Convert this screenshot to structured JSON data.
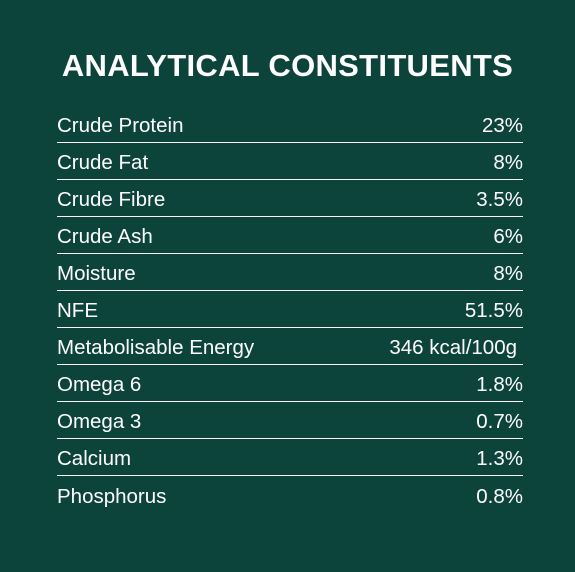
{
  "title": "ANALYTICAL CONSTITUENTS",
  "rows": [
    {
      "label": "Crude Protein",
      "value": "23%"
    },
    {
      "label": "Crude Fat",
      "value": "8%"
    },
    {
      "label": "Crude Fibre",
      "value": "3.5%"
    },
    {
      "label": "Crude Ash",
      "value": "6%"
    },
    {
      "label": "Moisture",
      "value": "8%"
    },
    {
      "label": "NFE",
      "value": "51.5%"
    },
    {
      "label": "Metabolisable Energy",
      "value": "346 kcal/100g"
    },
    {
      "label": "Omega 6",
      "value": "1.8%"
    },
    {
      "label": "Omega 3",
      "value": "0.7%"
    },
    {
      "label": "Calcium",
      "value": "1.3%"
    },
    {
      "label": "Phosphorus",
      "value": "0.8%"
    }
  ],
  "colors": {
    "background": "#0c433b",
    "text": "#ffffff"
  }
}
